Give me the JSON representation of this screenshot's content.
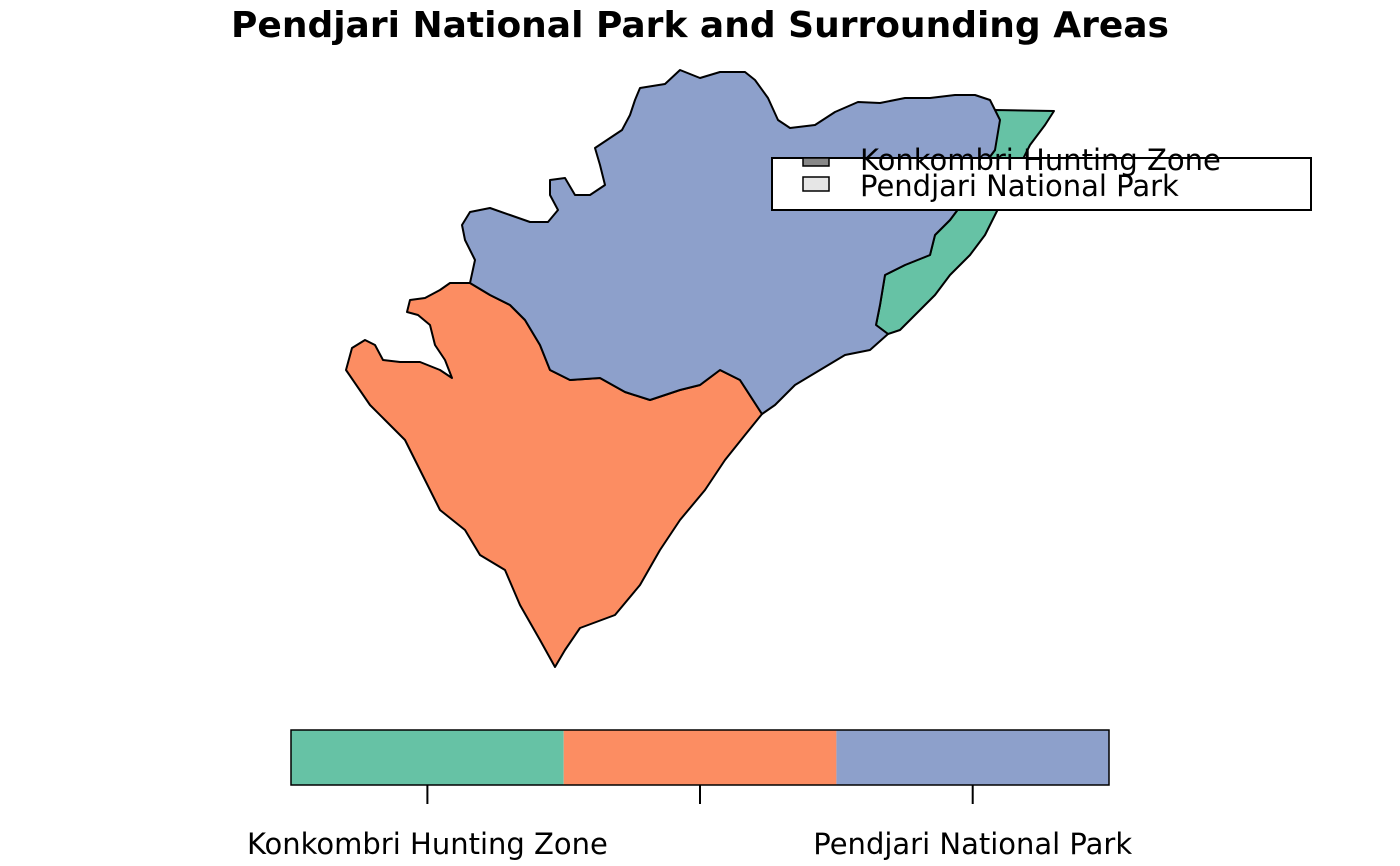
{
  "title": "Pendjari National Park and Surrounding Areas",
  "zones": [
    {
      "id": "zone-1",
      "color": "#66C2A5"
    },
    {
      "id": "zone-2",
      "color": "#FC8D62"
    },
    {
      "id": "zone-3",
      "color": "#8DA0CB"
    }
  ],
  "legend": {
    "items": [
      {
        "label": "Konkombri Hunting Zone",
        "swatch": "#888888"
      },
      {
        "label": "Pendjari National Park",
        "swatch": "#E6E6E6"
      }
    ]
  },
  "colorbar": {
    "colors": [
      "#66C2A5",
      "#FC8D62",
      "#8DA0CB"
    ],
    "tick_labels": [
      "Konkombri Hunting Zone",
      "",
      "Pendjari National Park"
    ]
  }
}
